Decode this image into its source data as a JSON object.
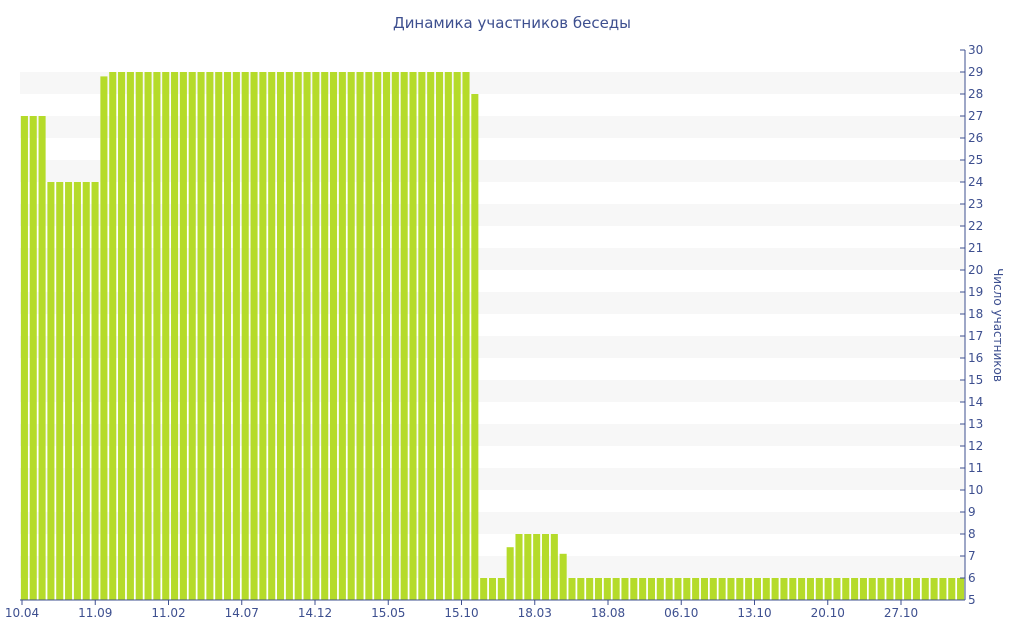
{
  "colors": {
    "bar": "#b5db2a",
    "text": "#3d4f8f",
    "band": "#f7f7f7",
    "axis": "#3d4f8f"
  },
  "chart_data": {
    "type": "bar",
    "title": "Динамика участников беседы",
    "xlabel": "",
    "ylabel": "Число участников",
    "ylim": [
      5,
      30
    ],
    "y_ticks": [
      "5",
      "6",
      "7",
      "8",
      "9",
      "10",
      "11",
      "12",
      "13",
      "14",
      "15",
      "16",
      "17",
      "18",
      "19",
      "20",
      "21",
      "22",
      "23",
      "24",
      "25",
      "26",
      "27",
      "28",
      "29",
      "30"
    ],
    "y_axis_position": "right",
    "grid": "alternating horizontal bands",
    "x_tick_labels": [
      "10.04",
      "11.09",
      "11.02",
      "14.07",
      "14.12",
      "15.05",
      "15.10",
      "18.03",
      "18.08",
      "06.10",
      "13.10",
      "20.10",
      "27.10"
    ],
    "values": [
      27,
      27,
      27,
      24,
      24,
      24,
      24,
      24,
      24,
      28.8,
      29,
      29,
      29,
      29,
      29,
      29,
      29,
      29,
      29,
      29,
      29,
      29,
      29,
      29,
      29,
      29,
      29,
      29,
      29,
      29,
      29,
      29,
      29,
      29,
      29,
      29,
      29,
      29,
      29,
      29,
      29,
      29,
      29,
      29,
      29,
      29,
      29,
      29,
      29,
      29,
      29,
      28,
      6,
      6,
      6,
      7.4,
      8,
      8,
      8,
      8,
      8,
      7.1,
      6,
      6,
      6,
      6,
      6,
      6,
      6,
      6,
      6,
      6,
      6,
      6,
      6,
      6,
      6,
      6,
      6,
      6,
      6,
      6,
      6,
      6,
      6,
      6,
      6,
      6,
      6,
      6,
      6,
      6,
      6,
      6,
      6,
      6,
      6,
      6,
      6,
      6,
      6,
      6,
      6,
      6,
      6,
      6,
      6
    ]
  }
}
